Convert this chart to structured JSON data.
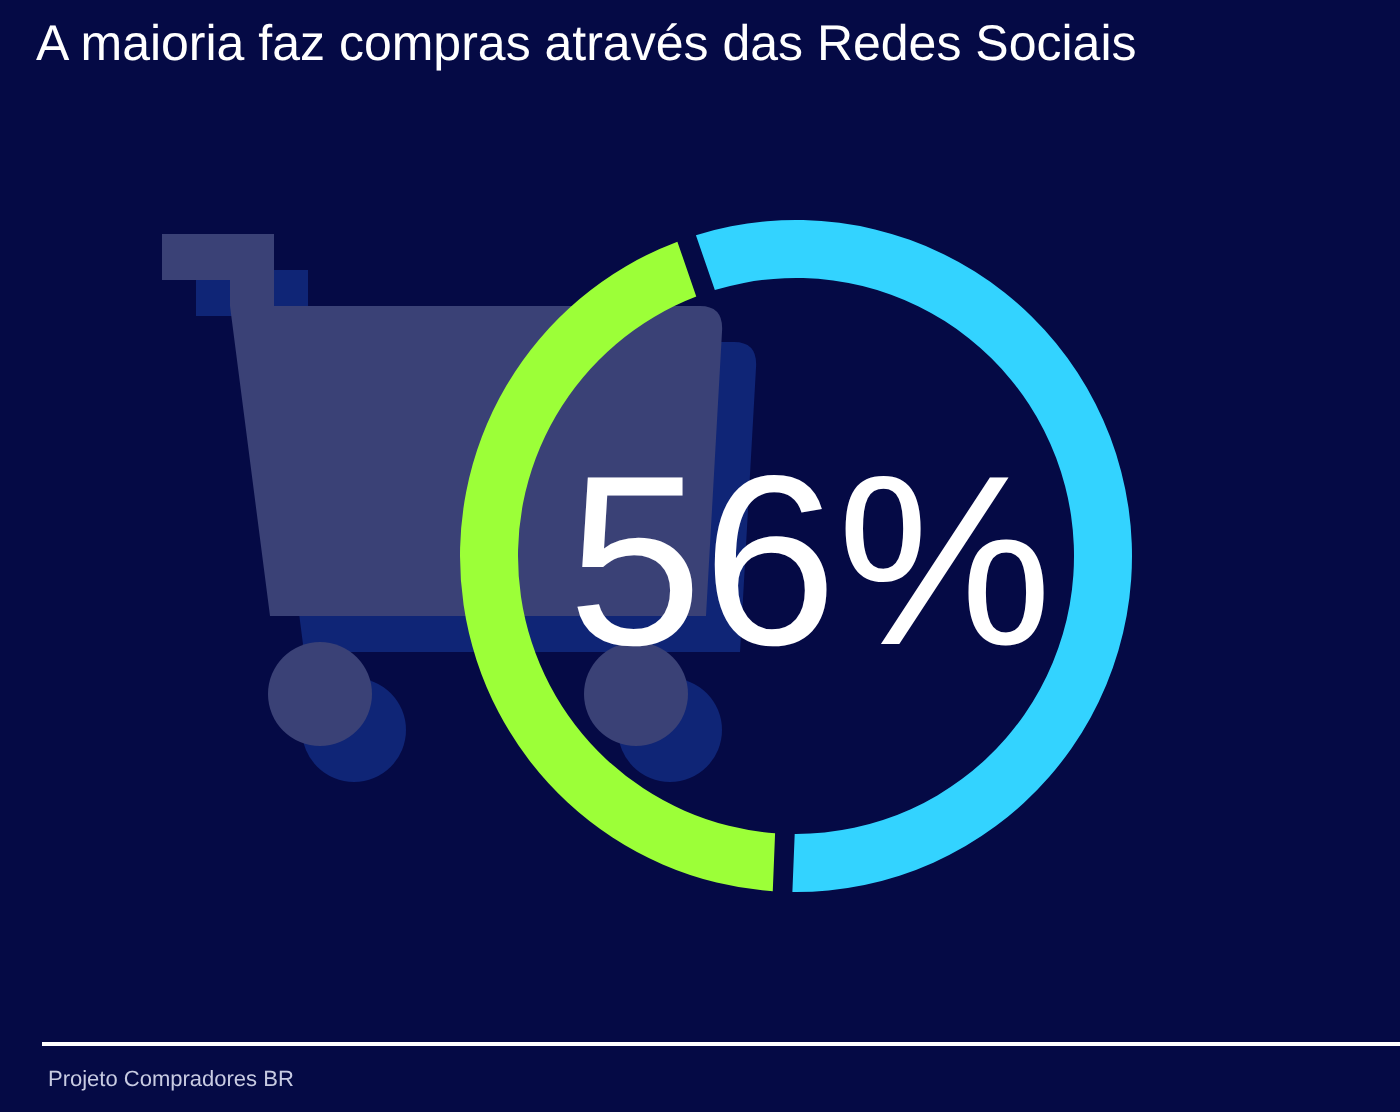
{
  "chart_data": {
    "type": "donut",
    "title": "A maioria faz compras através das Redes Sociais",
    "categories": [
      null,
      null
    ],
    "values": [
      56,
      44
    ],
    "colors": [
      "#33d3ff",
      "#9cff38"
    ],
    "value_labels": [
      "56%",
      null
    ],
    "annotations": [
      "Projeto Compradores BR"
    ]
  }
}
